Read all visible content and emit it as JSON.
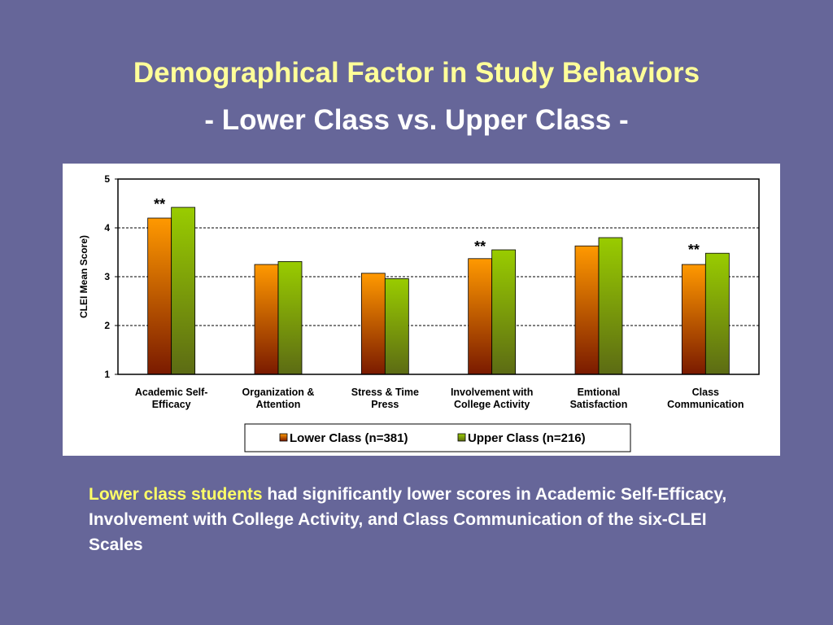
{
  "slide": {
    "title": "Demographical Factor in Study Behaviors",
    "subtitle": "- Lower Class vs. Upper Class -",
    "caption_highlight": "Lower class students",
    "caption_rest": " had significantly lower scores in Academic Self-Efficacy, Involvement with College Activity, and Class Communication of the six-CLEI Scales"
  },
  "chart_data": {
    "type": "bar",
    "ylabel": "CLEI Mean Score)",
    "ylim": [
      1,
      5
    ],
    "yticks": [
      1,
      2,
      3,
      4,
      5
    ],
    "grid": true,
    "legend_position": "bottom",
    "categories": [
      [
        "Academic Self-",
        "Efficacy"
      ],
      [
        "Organization &",
        "Attention"
      ],
      [
        "Stress & Time",
        "Press"
      ],
      [
        "Involvement with",
        "College Activity"
      ],
      [
        "Emtional",
        "Satisfaction"
      ],
      [
        "Class",
        "Communication"
      ]
    ],
    "series": [
      {
        "name": "Lower Class (n=381)",
        "values": [
          4.2,
          3.25,
          3.07,
          3.37,
          3.63,
          3.25
        ],
        "color_top": "#FF9900",
        "color_bottom": "#7A1A00"
      },
      {
        "name": "Upper Class (n=216)",
        "values": [
          4.42,
          3.31,
          2.96,
          3.55,
          3.8,
          3.48
        ],
        "color_top": "#99CC00",
        "color_bottom": "#5C6B14"
      }
    ],
    "annotations": [
      {
        "category_index": 0,
        "text": "**"
      },
      {
        "category_index": 3,
        "text": "**"
      },
      {
        "category_index": 5,
        "text": "**"
      }
    ]
  }
}
